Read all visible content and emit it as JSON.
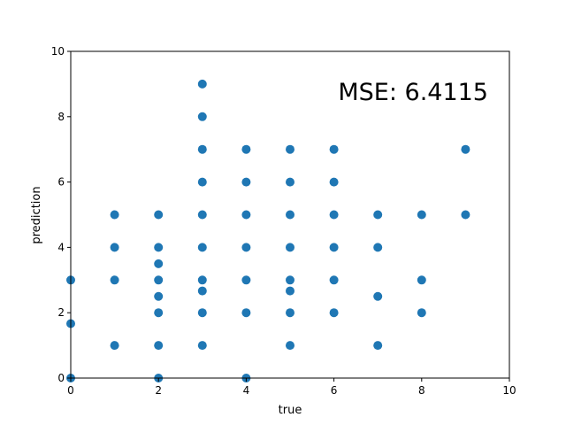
{
  "chart_data": {
    "type": "scatter",
    "title": "",
    "xlabel": "true",
    "ylabel": "prediction",
    "xlim": [
      0,
      10
    ],
    "ylim": [
      0,
      10
    ],
    "xticks": [
      0,
      2,
      4,
      6,
      8,
      10
    ],
    "yticks": [
      0,
      2,
      4,
      6,
      8,
      10
    ],
    "grid": false,
    "annotation": "MSE: 6.4115",
    "marker_color": "#1f77b4",
    "points": [
      {
        "x": 0,
        "y": 3
      },
      {
        "x": 0,
        "y": 1.667
      },
      {
        "x": 0,
        "y": 0
      },
      {
        "x": 1,
        "y": 5
      },
      {
        "x": 1,
        "y": 4
      },
      {
        "x": 1,
        "y": 3
      },
      {
        "x": 1,
        "y": 1
      },
      {
        "x": 2,
        "y": 5
      },
      {
        "x": 2,
        "y": 4
      },
      {
        "x": 2,
        "y": 3.5
      },
      {
        "x": 2,
        "y": 3
      },
      {
        "x": 2,
        "y": 2.5
      },
      {
        "x": 2,
        "y": 2
      },
      {
        "x": 2,
        "y": 1
      },
      {
        "x": 2,
        "y": 0
      },
      {
        "x": 3,
        "y": 9
      },
      {
        "x": 3,
        "y": 8
      },
      {
        "x": 3,
        "y": 7
      },
      {
        "x": 3,
        "y": 6
      },
      {
        "x": 3,
        "y": 5
      },
      {
        "x": 3,
        "y": 4
      },
      {
        "x": 3,
        "y": 3
      },
      {
        "x": 3,
        "y": 2.667
      },
      {
        "x": 3,
        "y": 2
      },
      {
        "x": 3,
        "y": 1
      },
      {
        "x": 4,
        "y": 7
      },
      {
        "x": 4,
        "y": 6
      },
      {
        "x": 4,
        "y": 5
      },
      {
        "x": 4,
        "y": 4
      },
      {
        "x": 4,
        "y": 3
      },
      {
        "x": 4,
        "y": 2
      },
      {
        "x": 4,
        "y": 0
      },
      {
        "x": 5,
        "y": 7
      },
      {
        "x": 5,
        "y": 6
      },
      {
        "x": 5,
        "y": 5
      },
      {
        "x": 5,
        "y": 4
      },
      {
        "x": 5,
        "y": 3
      },
      {
        "x": 5,
        "y": 2.667
      },
      {
        "x": 5,
        "y": 2
      },
      {
        "x": 5,
        "y": 1
      },
      {
        "x": 6,
        "y": 7
      },
      {
        "x": 6,
        "y": 6
      },
      {
        "x": 6,
        "y": 5
      },
      {
        "x": 6,
        "y": 4
      },
      {
        "x": 6,
        "y": 3
      },
      {
        "x": 6,
        "y": 2
      },
      {
        "x": 7,
        "y": 5
      },
      {
        "x": 7,
        "y": 4
      },
      {
        "x": 7,
        "y": 2.5
      },
      {
        "x": 7,
        "y": 1
      },
      {
        "x": 8,
        "y": 5
      },
      {
        "x": 8,
        "y": 3
      },
      {
        "x": 8,
        "y": 2
      },
      {
        "x": 9,
        "y": 7
      },
      {
        "x": 9,
        "y": 5
      }
    ]
  }
}
